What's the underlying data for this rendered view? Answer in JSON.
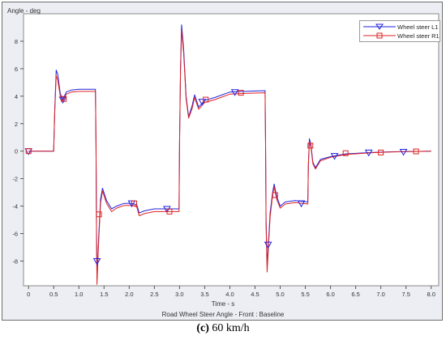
{
  "chart_data": {
    "type": "line",
    "title": "Road Wheel Steer Angle - Front : Baseline",
    "xlabel": "Time - s",
    "ylabel": "Angle - deg",
    "xlim": [
      -0.1,
      8.15
    ],
    "ylim": [
      -9.8,
      10.0
    ],
    "xticks": [
      0,
      0.5,
      1.0,
      1.5,
      2.0,
      2.5,
      3.0,
      3.5,
      4.0,
      4.5,
      5.0,
      5.5,
      6.0,
      6.5,
      7.0,
      7.5,
      8.0
    ],
    "xtick_labels": [
      "0",
      "0.5",
      "1.0",
      "1.5",
      "2.0",
      "2.5",
      "3.0",
      "3.5",
      "4.0",
      "4.5",
      "5.0",
      "5.5",
      "6.0",
      "6.5",
      "7.0",
      "7.5",
      "8.0"
    ],
    "yticks": [
      -8,
      -6,
      -4,
      -2,
      0,
      2,
      4,
      6,
      8
    ],
    "ytick_labels": [
      "-8",
      "-6",
      "-4",
      "-2",
      "0",
      "2",
      "4",
      "6",
      "8"
    ],
    "grid": false,
    "legend_position": "top-right",
    "series": [
      {
        "name": "Wheel steer L1",
        "color": "#2222dd",
        "marker": "triangle-down",
        "points": [
          [
            0,
            0
          ],
          [
            0.5,
            0
          ],
          [
            0.52,
            3.0
          ],
          [
            0.55,
            5.9
          ],
          [
            0.58,
            5.6
          ],
          [
            0.63,
            4.2
          ],
          [
            0.68,
            3.75
          ],
          [
            0.75,
            4.3
          ],
          [
            0.85,
            4.45
          ],
          [
            1.0,
            4.5
          ],
          [
            1.33,
            4.5
          ],
          [
            1.34,
            0.5
          ],
          [
            1.35,
            -5.5
          ],
          [
            1.36,
            -9.3
          ],
          [
            1.39,
            -6.5
          ],
          [
            1.43,
            -3.5
          ],
          [
            1.47,
            -2.7
          ],
          [
            1.55,
            -3.6
          ],
          [
            1.65,
            -4.2
          ],
          [
            1.75,
            -4.0
          ],
          [
            1.9,
            -3.8
          ],
          [
            2.05,
            -3.8
          ],
          [
            2.15,
            -3.9
          ],
          [
            2.2,
            -4.5
          ],
          [
            2.3,
            -4.35
          ],
          [
            2.5,
            -4.2
          ],
          [
            2.9,
            -4.2
          ],
          [
            2.99,
            -4.2
          ],
          [
            3.0,
            0.5
          ],
          [
            3.02,
            6.0
          ],
          [
            3.04,
            9.2
          ],
          [
            3.08,
            7.5
          ],
          [
            3.13,
            4.0
          ],
          [
            3.18,
            2.5
          ],
          [
            3.25,
            3.3
          ],
          [
            3.3,
            4.1
          ],
          [
            3.38,
            3.2
          ],
          [
            3.5,
            3.7
          ],
          [
            3.7,
            3.9
          ],
          [
            4.0,
            4.3
          ],
          [
            4.3,
            4.35
          ],
          [
            4.7,
            4.4
          ],
          [
            4.71,
            0.5
          ],
          [
            4.72,
            -5.0
          ],
          [
            4.74,
            -8.3
          ],
          [
            4.77,
            -6.5
          ],
          [
            4.8,
            -4.5
          ],
          [
            4.85,
            -3.0
          ],
          [
            4.88,
            -2.4
          ],
          [
            4.93,
            -3.3
          ],
          [
            5.0,
            -4.0
          ],
          [
            5.1,
            -3.7
          ],
          [
            5.3,
            -3.6
          ],
          [
            5.55,
            -3.7
          ],
          [
            5.56,
            -1.0
          ],
          [
            5.58,
            0.9
          ],
          [
            5.61,
            0.5
          ],
          [
            5.65,
            -0.8
          ],
          [
            5.7,
            -1.2
          ],
          [
            5.8,
            -0.6
          ],
          [
            6.0,
            -0.4
          ],
          [
            6.3,
            -0.2
          ],
          [
            6.8,
            -0.1
          ],
          [
            7.2,
            -0.05
          ],
          [
            8.0,
            0
          ]
        ]
      },
      {
        "name": "Wheel steer R1",
        "color": "#dd2222",
        "marker": "square",
        "points": [
          [
            0,
            0
          ],
          [
            0.5,
            0
          ],
          [
            0.52,
            2.8
          ],
          [
            0.55,
            5.5
          ],
          [
            0.58,
            5.2
          ],
          [
            0.63,
            4.0
          ],
          [
            0.68,
            3.65
          ],
          [
            0.75,
            4.15
          ],
          [
            0.85,
            4.3
          ],
          [
            1.0,
            4.35
          ],
          [
            1.33,
            4.35
          ],
          [
            1.34,
            0.5
          ],
          [
            1.35,
            -5.8
          ],
          [
            1.36,
            -9.7
          ],
          [
            1.39,
            -6.8
          ],
          [
            1.43,
            -3.8
          ],
          [
            1.47,
            -2.9
          ],
          [
            1.55,
            -3.8
          ],
          [
            1.65,
            -4.4
          ],
          [
            1.75,
            -4.15
          ],
          [
            1.9,
            -3.95
          ],
          [
            2.05,
            -3.95
          ],
          [
            2.15,
            -4.05
          ],
          [
            2.2,
            -4.7
          ],
          [
            2.3,
            -4.55
          ],
          [
            2.5,
            -4.4
          ],
          [
            2.9,
            -4.4
          ],
          [
            2.99,
            -4.4
          ],
          [
            3.0,
            0.5
          ],
          [
            3.02,
            5.8
          ],
          [
            3.04,
            8.8
          ],
          [
            3.08,
            7.2
          ],
          [
            3.13,
            3.8
          ],
          [
            3.18,
            2.4
          ],
          [
            3.25,
            3.1
          ],
          [
            3.3,
            3.9
          ],
          [
            3.38,
            3.05
          ],
          [
            3.5,
            3.55
          ],
          [
            3.7,
            3.75
          ],
          [
            4.0,
            4.15
          ],
          [
            4.3,
            4.2
          ],
          [
            4.7,
            4.25
          ],
          [
            4.71,
            0.5
          ],
          [
            4.72,
            -5.3
          ],
          [
            4.74,
            -8.8
          ],
          [
            4.77,
            -6.8
          ],
          [
            4.8,
            -4.8
          ],
          [
            4.85,
            -3.2
          ],
          [
            4.88,
            -2.6
          ],
          [
            4.93,
            -3.5
          ],
          [
            5.0,
            -4.15
          ],
          [
            5.1,
            -3.85
          ],
          [
            5.3,
            -3.75
          ],
          [
            5.55,
            -3.85
          ],
          [
            5.56,
            -1.0
          ],
          [
            5.58,
            0.7
          ],
          [
            5.61,
            0.3
          ],
          [
            5.65,
            -0.9
          ],
          [
            5.7,
            -1.3
          ],
          [
            5.8,
            -0.7
          ],
          [
            6.0,
            -0.45
          ],
          [
            6.3,
            -0.25
          ],
          [
            6.8,
            -0.12
          ],
          [
            7.2,
            -0.06
          ],
          [
            8.0,
            0
          ]
        ]
      }
    ],
    "markers": [
      {
        "series": 0,
        "points": [
          [
            0,
            0
          ],
          [
            0.68,
            3.75
          ],
          [
            1.36,
            -8.0
          ],
          [
            2.05,
            -3.8
          ],
          [
            2.75,
            -4.2
          ],
          [
            3.45,
            3.6
          ],
          [
            4.1,
            4.3
          ],
          [
            4.76,
            -6.8
          ],
          [
            5.42,
            -3.8
          ],
          [
            6.08,
            -0.35
          ],
          [
            6.76,
            -0.1
          ],
          [
            7.45,
            -0.05
          ]
        ]
      },
      {
        "series": 1,
        "points": [
          [
            0,
            0
          ],
          [
            0.7,
            3.8
          ],
          [
            1.4,
            -4.6
          ],
          [
            2.1,
            -3.8
          ],
          [
            2.8,
            -4.4
          ],
          [
            3.52,
            3.75
          ],
          [
            4.22,
            4.25
          ],
          [
            4.9,
            -3.2
          ],
          [
            5.6,
            0.4
          ],
          [
            6.3,
            -0.15
          ],
          [
            7.0,
            -0.1
          ],
          [
            7.7,
            -0.02
          ]
        ]
      }
    ]
  },
  "caption": {
    "letter": "(c)",
    "text": " 60 km/h"
  }
}
